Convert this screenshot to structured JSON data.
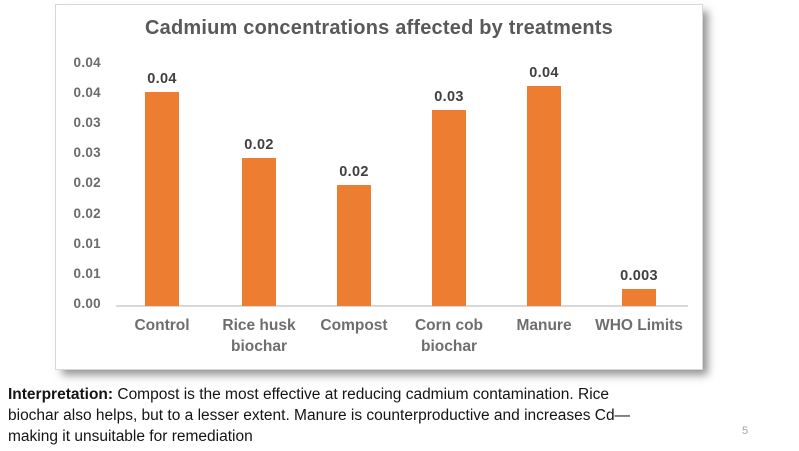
{
  "page_number": "5",
  "chart_data": {
    "type": "bar",
    "title": "Cadmium concentrations affected by treatments",
    "categories": [
      "Control",
      "Rice husk biochar",
      "Compost",
      "Corn cob biochar",
      "Manure",
      "WHO Limits"
    ],
    "values": [
      0.0355,
      0.0245,
      0.02,
      0.0325,
      0.0365,
      0.0028
    ],
    "data_labels": [
      "0.04",
      "0.02",
      "0.02",
      "0.03",
      "0.04",
      "0.003"
    ],
    "bar_color": "#ED7D31",
    "xlabel": "",
    "ylabel": "",
    "ylim": [
      0,
      0.04
    ],
    "y_tick_labels_bottom_to_top": [
      "0.00",
      "0.01",
      "0.01",
      "0.02",
      "0.02",
      "0.03",
      "0.03",
      "0.04",
      "0.04"
    ],
    "grid": false,
    "legend": false
  },
  "interpretation": {
    "bold": "Interpretation:",
    "line1": " Compost is the most effective at reducing cadmium contamination. Rice",
    "line2": "biochar also helps, but to a lesser extent. Manure is counterproductive and increases Cd—",
    "line3": "making it unsuitable for remediation"
  }
}
